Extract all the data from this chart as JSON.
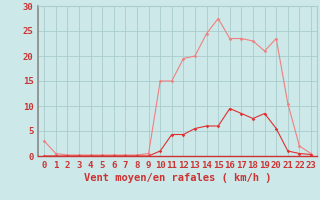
{
  "x_labels": [
    0,
    1,
    2,
    3,
    4,
    5,
    6,
    7,
    8,
    9,
    10,
    11,
    12,
    13,
    14,
    15,
    16,
    17,
    18,
    19,
    20,
    21,
    22,
    23
  ],
  "light_line": [
    3,
    0.5,
    0.2,
    0.2,
    0.2,
    0.2,
    0.2,
    0.2,
    0.2,
    0.5,
    15,
    15,
    19.5,
    20,
    24.5,
    27.5,
    23.5,
    23.5,
    23,
    21,
    23.5,
    10.5,
    2,
    0.5
  ],
  "dark_line": [
    0,
    0,
    0,
    0,
    0,
    0,
    0,
    0,
    0,
    0,
    1,
    4.3,
    4.3,
    5.5,
    6,
    6,
    9.5,
    8.5,
    7.5,
    8.5,
    5.5,
    1,
    0.5,
    0.3
  ],
  "light_color": "#f08080",
  "dark_color": "#e03030",
  "bg_color": "#cce8e8",
  "grid_color": "#aacccc",
  "axis_color": "#cc3333",
  "spine_color": "#888888",
  "xlabel": "Vent moyen/en rafales ( km/h )",
  "ylim": [
    0,
    30
  ],
  "xlim_min": -0.5,
  "xlim_max": 23.5,
  "yticks": [
    0,
    5,
    10,
    15,
    20,
    25,
    30
  ],
  "tick_fontsize": 6.5,
  "label_fontsize": 7.5
}
